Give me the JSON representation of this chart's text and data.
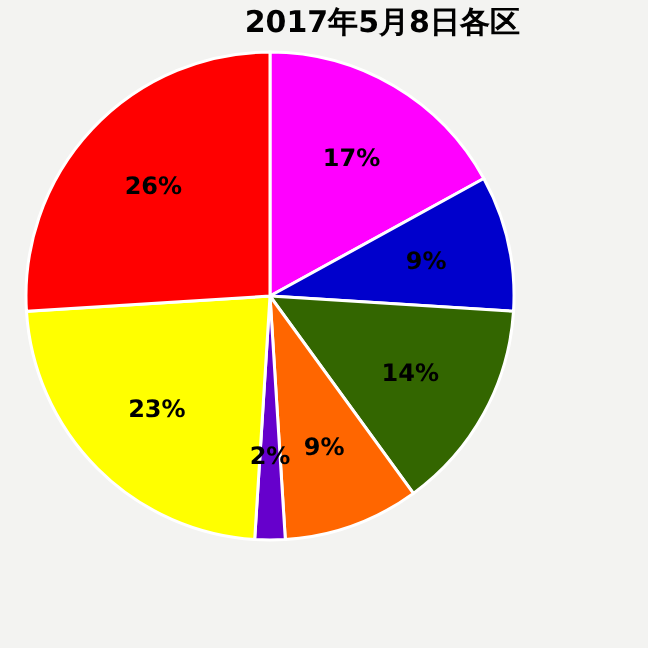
{
  "chart_data": {
    "type": "pie",
    "title": "2017年5月8日各区",
    "categories": [
      null,
      null,
      null,
      null,
      null,
      null,
      null
    ],
    "values": [
      17,
      9,
      14,
      9,
      2,
      23,
      26
    ],
    "colors": [
      "#ff00ff",
      "#0000cc",
      "#336600",
      "#ff6600",
      "#6600cc",
      "#ffff00",
      "#ff0000"
    ],
    "value_labels": [
      "17%",
      "9%",
      "14%",
      "9%",
      "2%",
      "23%",
      "26%"
    ],
    "legend": false
  }
}
